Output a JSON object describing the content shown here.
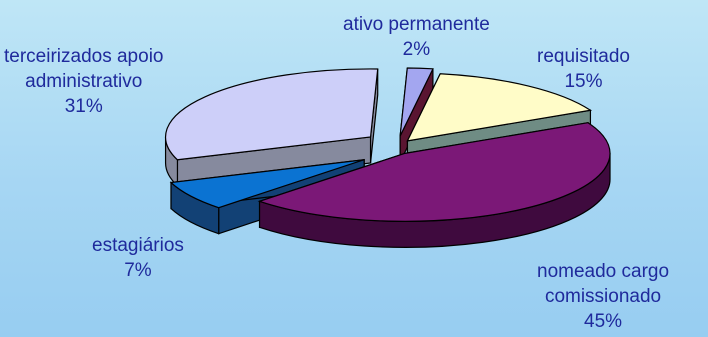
{
  "colors": {
    "label_text": "#1f2a9c"
  },
  "chart_data": {
    "type": "pie",
    "style": "3d-exploded",
    "slices": [
      {
        "label_lines": [
          "ativo permanente"
        ],
        "percent_label": "2%",
        "value": 2,
        "top_color": "#a3a6f0",
        "side_color": "#5a1531"
      },
      {
        "label_lines": [
          "requisitado"
        ],
        "percent_label": "15%",
        "value": 15,
        "top_color": "#fffcc8",
        "side_color": "#6f8c84"
      },
      {
        "label_lines": [
          "nomeado cargo",
          "comissionado"
        ],
        "percent_label": "45%",
        "value": 45,
        "top_color": "#7b1877",
        "side_color": "#3f0a3e"
      },
      {
        "label_lines": [
          "estagiários"
        ],
        "percent_label": "7%",
        "value": 7,
        "top_color": "#0b73d2",
        "side_color": "#124175"
      },
      {
        "label_lines": [
          "terceirizados apoio",
          "administrativo"
        ],
        "percent_label": "31%",
        "value": 31,
        "top_color": "#cdcff9",
        "side_color": "#868a9e"
      }
    ]
  }
}
